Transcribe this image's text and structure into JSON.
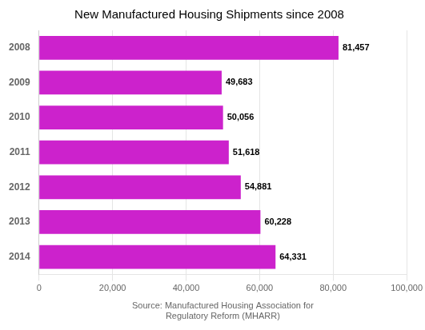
{
  "chart_data": {
    "type": "bar",
    "orientation": "horizontal",
    "title": "New Manufactured Housing Shipments since 2008",
    "xlabel": "Source: Manufactured Housing Association for\nRegulatory Reform (MHARR)",
    "categories": [
      "2008",
      "2009",
      "2010",
      "2011",
      "2012",
      "2013",
      "2014"
    ],
    "values": [
      81457,
      49683,
      50056,
      51618,
      54881,
      60228,
      64331
    ],
    "value_labels": [
      "81,457",
      "49,683",
      "50,056",
      "51,618",
      "54,881",
      "60,228",
      "64,331"
    ],
    "data_labels": true,
    "color": "#cc22cc",
    "xlim": [
      0,
      100000
    ],
    "xticks": [
      0,
      {
        "value": 20000,
        "label": "20,000"
      },
      {
        "value": 40000,
        "label": "40,000"
      },
      {
        "value": 60000,
        "label": "60,000"
      },
      {
        "value": 80000,
        "label": "80,000"
      },
      {
        "value": 100000,
        "label": "100,000"
      }
    ],
    "grid": true
  }
}
